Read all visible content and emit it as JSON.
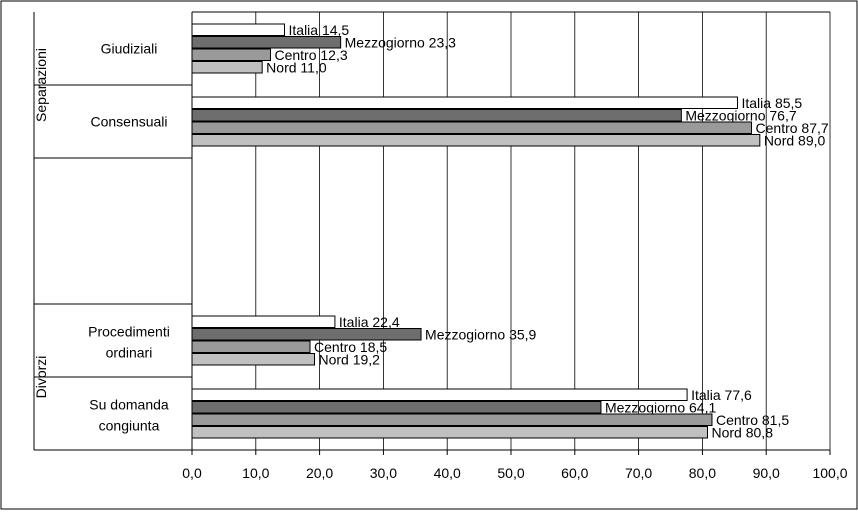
{
  "chart_data": {
    "type": "bar",
    "orientation": "horizontal",
    "title": "",
    "xlabel": "",
    "ylabel": "",
    "xlim": [
      0,
      100
    ],
    "x_ticks": [
      "0,0",
      "10,0",
      "20,0",
      "30,0",
      "40,0",
      "50,0",
      "60,0",
      "70,0",
      "80,0",
      "90,0",
      "100,0"
    ],
    "grid": "vertical",
    "legend": "none",
    "groups": [
      {
        "label": "Separazioni",
        "categories": [
          {
            "label": "Giudiziali",
            "bars": [
              {
                "name": "Italia",
                "value": 14.5,
                "label": "Italia 14,5"
              },
              {
                "name": "Mezzogiorno",
                "value": 23.3,
                "label": "Mezzogiorno 23,3"
              },
              {
                "name": "Centro",
                "value": 12.3,
                "label": "Centro 12,3"
              },
              {
                "name": "Nord",
                "value": 11.0,
                "label": "Nord 11,0"
              }
            ]
          },
          {
            "label": "Consensuali",
            "bars": [
              {
                "name": "Italia",
                "value": 85.5,
                "label": "Italia 85,5"
              },
              {
                "name": "Mezzogiorno",
                "value": 76.7,
                "label": "Mezzogiorno 76,7"
              },
              {
                "name": "Centro",
                "value": 87.7,
                "label": "Centro 87,7"
              },
              {
                "name": "Nord",
                "value": 89.0,
                "label": "Nord 89,0"
              }
            ]
          }
        ]
      },
      {
        "label": "Divorzi",
        "categories": [
          {
            "label": "Procedimenti ordinari",
            "label_lines": [
              "Procedimenti",
              "ordinari"
            ],
            "bars": [
              {
                "name": "Italia",
                "value": 22.4,
                "label": "Italia 22,4"
              },
              {
                "name": "Mezzogiorno",
                "value": 35.9,
                "label": "Mezzogiorno 35,9"
              },
              {
                "name": "Centro",
                "value": 18.5,
                "label": "Centro 18,5"
              },
              {
                "name": "Nord",
                "value": 19.2,
                "label": "Nord 19,2"
              }
            ]
          },
          {
            "label": "Su domanda congiunta",
            "label_lines": [
              "Su domanda",
              "congiunta"
            ],
            "bars": [
              {
                "name": "Italia",
                "value": 77.6,
                "label": "Italia 77,6"
              },
              {
                "name": "Mezzogiorno",
                "value": 64.1,
                "label": "Mezzogiorno 64,1"
              },
              {
                "name": "Centro",
                "value": 81.5,
                "label": "Centro 81,5"
              },
              {
                "name": "Nord",
                "value": 80.8,
                "label": "Nord 80,8"
              }
            ]
          }
        ]
      }
    ],
    "series_colors": {
      "Italia": "#ffffff",
      "Mezzogiorno": "#6e6e6e",
      "Centro": "#9a9a9a",
      "Nord": "#c0c0c0"
    }
  }
}
